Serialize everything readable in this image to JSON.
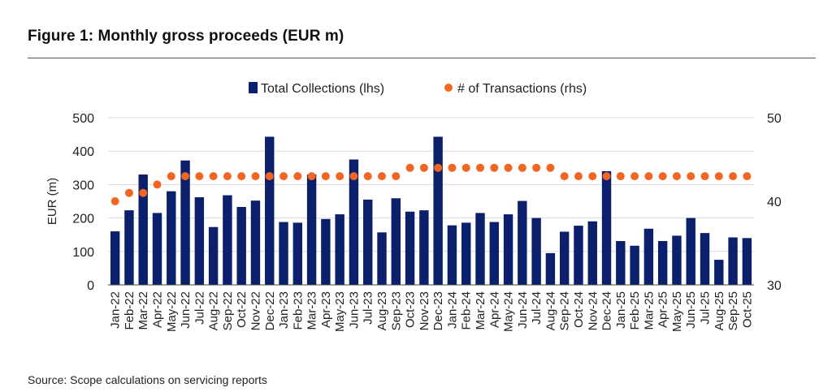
{
  "page": {
    "title": "Figure 1: Monthly gross proceeds (EUR m)",
    "source": "Source: Scope calculations on servicing reports"
  },
  "colors": {
    "bars": "#0b1f6b",
    "dots": "#f26522",
    "grid": "#d9d9d9"
  },
  "chart_data": {
    "type": "bar",
    "title": "Monthly gross proceeds (EUR m)",
    "xlabel": "",
    "ylabel": "EUR (m)",
    "ylim": [
      0,
      500
    ],
    "y2lim": [
      30,
      50
    ],
    "yticks": [
      "0",
      "100",
      "200",
      "300",
      "400",
      "500"
    ],
    "y2ticks": [
      "30",
      "40",
      "50"
    ],
    "legend_position": "top",
    "categories": [
      "Jan-22",
      "Feb-22",
      "Mar-22",
      "Apr-22",
      "May-22",
      "Jun-22",
      "Jul-22",
      "Aug-22",
      "Sep-22",
      "Oct-22",
      "Nov-22",
      "Dec-22",
      "Jan-23",
      "Feb-23",
      "Mar-23",
      "Apr-23",
      "May-23",
      "Jun-23",
      "Jul-23",
      "Aug-23",
      "Sep-23",
      "Oct-23",
      "Nov-23",
      "Dec-23",
      "Jan-24",
      "Feb-24",
      "Mar-24",
      "Apr-24",
      "May-24",
      "Jun-24",
      "Jul-24",
      "Aug-24",
      "Sep-24",
      "Oct-24",
      "Nov-24",
      "Dec-24",
      "Jan-25",
      "Feb-25",
      "Mar-25",
      "Apr-25",
      "May-25",
      "Jun-25",
      "Jul-25",
      "Aug-25",
      "Sep-25",
      "Oct-25"
    ],
    "series": [
      {
        "name": "Total Collections (lhs)",
        "kind": "bar",
        "axis": "left",
        "values": [
          160,
          223,
          330,
          215,
          280,
          372,
          262,
          173,
          268,
          233,
          252,
          443,
          188,
          186,
          330,
          197,
          211,
          375,
          255,
          157,
          259,
          219,
          223,
          443,
          178,
          186,
          215,
          188,
          211,
          251,
          200,
          95,
          159,
          177,
          190,
          340,
          131,
          117,
          168,
          131,
          147,
          200,
          155,
          75,
          142,
          140
        ]
      },
      {
        "name": "# of Transactions (rhs)",
        "kind": "dot",
        "axis": "right",
        "values": [
          40,
          41,
          41,
          42,
          43,
          43,
          43,
          43,
          43,
          43,
          43,
          43,
          43,
          43,
          43,
          43,
          43,
          43,
          43,
          43,
          43,
          44,
          44,
          44,
          44,
          44,
          44,
          44,
          44,
          44,
          44,
          44,
          43,
          43,
          43,
          43,
          43,
          43,
          43,
          43,
          43,
          43,
          43,
          43,
          43,
          43
        ]
      }
    ]
  }
}
